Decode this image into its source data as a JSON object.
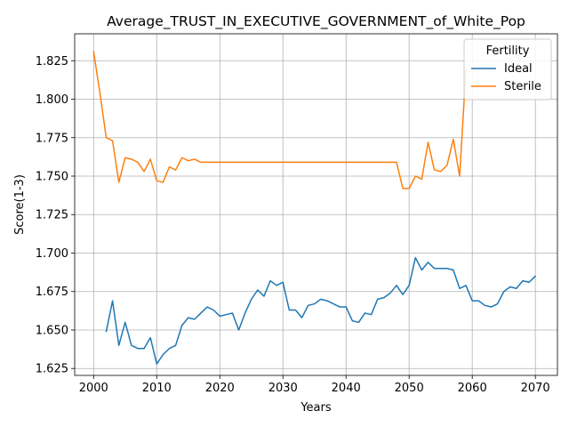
{
  "chart_data": {
    "type": "line",
    "title": "Average_TRUST_IN_EXECUTIVE_GOVERNMENT_of_White_Pop",
    "xlabel": "Years",
    "ylabel": "Score(1-3)",
    "xlim": [
      1997,
      2073.5
    ],
    "ylim": [
      1.6205,
      1.8425
    ],
    "xticks": [
      2000,
      2010,
      2020,
      2030,
      2040,
      2050,
      2060,
      2070
    ],
    "yticks": [
      1.625,
      1.65,
      1.675,
      1.7,
      1.725,
      1.75,
      1.775,
      1.8,
      1.825
    ],
    "ytick_labels": [
      "1.625",
      "1.650",
      "1.675",
      "1.700",
      "1.725",
      "1.750",
      "1.775",
      "1.800",
      "1.825"
    ],
    "grid": true,
    "legend": {
      "title": "Fertility",
      "position": "top-right"
    },
    "series": [
      {
        "name": "Ideal",
        "color": "#1f77b4",
        "x": [
          2002,
          2003,
          2004,
          2005,
          2006,
          2007,
          2008,
          2009,
          2010,
          2011,
          2012,
          2013,
          2014,
          2015,
          2016,
          2017,
          2018,
          2019,
          2020,
          2021,
          2022,
          2023,
          2024,
          2025,
          2026,
          2027,
          2028,
          2029,
          2030,
          2031,
          2032,
          2033,
          2034,
          2035,
          2036,
          2037,
          2038,
          2039,
          2040,
          2041,
          2042,
          2043,
          2044,
          2045,
          2046,
          2047,
          2048,
          2049,
          2050,
          2051,
          2052,
          2053,
          2054,
          2055,
          2056,
          2057,
          2058,
          2059,
          2060,
          2061,
          2062,
          2063,
          2064,
          2065,
          2066,
          2067,
          2068,
          2069,
          2070
        ],
        "values": [
          1.649,
          1.669,
          1.64,
          1.655,
          1.64,
          1.638,
          1.638,
          1.645,
          1.628,
          1.634,
          1.638,
          1.64,
          1.653,
          1.658,
          1.657,
          1.661,
          1.665,
          1.663,
          1.659,
          1.66,
          1.661,
          1.65,
          1.661,
          1.67,
          1.676,
          1.672,
          1.682,
          1.679,
          1.681,
          1.663,
          1.663,
          1.658,
          1.666,
          1.667,
          1.67,
          1.669,
          1.667,
          1.665,
          1.665,
          1.656,
          1.655,
          1.661,
          1.66,
          1.67,
          1.671,
          1.674,
          1.679,
          1.673,
          1.679,
          1.697,
          1.689,
          1.694,
          1.69,
          1.69,
          1.69,
          1.689,
          1.677,
          1.679,
          1.669,
          1.669,
          1.666,
          1.665,
          1.667,
          1.675,
          1.678,
          1.677,
          1.682,
          1.681,
          1.685
        ]
      },
      {
        "name": "Sterile",
        "color": "#ff7f0e",
        "x": [
          2000,
          2001,
          2002,
          2003,
          2004,
          2005,
          2006,
          2007,
          2008,
          2009,
          2010,
          2011,
          2012,
          2013,
          2014,
          2015,
          2016,
          2017,
          2018,
          2019,
          2020,
          2021,
          2022,
          2023,
          2024,
          2025,
          2026,
          2027,
          2028,
          2029,
          2030,
          2031,
          2032,
          2033,
          2034,
          2035,
          2036,
          2037,
          2038,
          2039,
          2040,
          2041,
          2042,
          2043,
          2044,
          2045,
          2046,
          2047,
          2048,
          2049,
          2050,
          2051,
          2052,
          2053,
          2054,
          2055,
          2056,
          2057,
          2058,
          2059
        ],
        "values": [
          1.831,
          1.804,
          1.775,
          1.773,
          1.746,
          1.762,
          1.761,
          1.759,
          1.753,
          1.761,
          1.747,
          1.746,
          1.756,
          1.754,
          1.762,
          1.76,
          1.761,
          1.759,
          1.759,
          1.759,
          1.759,
          1.759,
          1.759,
          1.759,
          1.759,
          1.759,
          1.759,
          1.759,
          1.759,
          1.759,
          1.759,
          1.759,
          1.759,
          1.759,
          1.759,
          1.759,
          1.759,
          1.759,
          1.759,
          1.759,
          1.759,
          1.759,
          1.759,
          1.759,
          1.759,
          1.759,
          1.759,
          1.759,
          1.759,
          1.742,
          1.742,
          1.75,
          1.748,
          1.772,
          1.754,
          1.753,
          1.757,
          1.774,
          1.75,
          1.819
        ]
      }
    ]
  }
}
